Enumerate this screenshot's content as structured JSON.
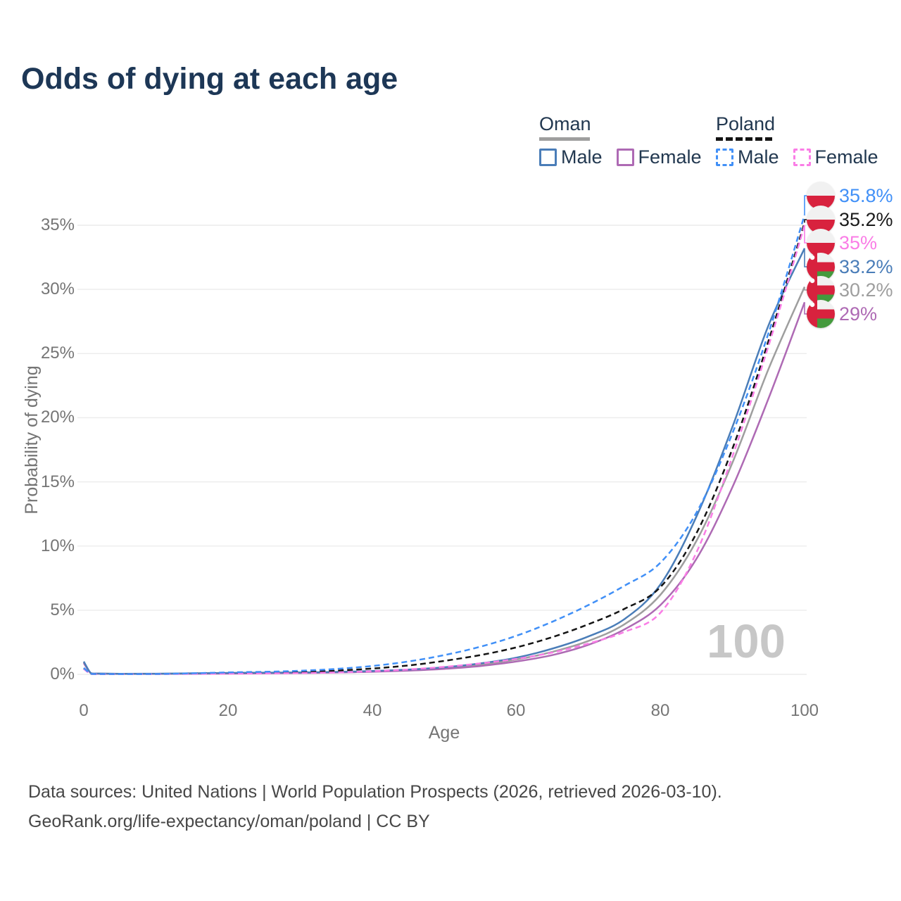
{
  "title": "Odds of dying at each age",
  "legend": {
    "groups": [
      {
        "name": "Oman",
        "line_style": "solid",
        "underline_color": "#9e9e9e",
        "items": [
          {
            "label": "Male",
            "color": "#4a7db8"
          },
          {
            "label": "Female",
            "color": "#ae6ab4"
          }
        ]
      },
      {
        "name": "Poland",
        "line_style": "dashed",
        "underline_color": "#141414",
        "items": [
          {
            "label": "Male",
            "color": "#4190f7"
          },
          {
            "label": "Female",
            "color": "#fa7de6"
          }
        ]
      }
    ]
  },
  "chart_data": {
    "type": "line",
    "title": "Odds of dying at each age",
    "xlabel": "Age",
    "ylabel": "Probability of dying",
    "xlim": [
      0,
      100
    ],
    "ylim": [
      0,
      37
    ],
    "grid": "horizontal",
    "x_tick_labels": [
      "0",
      "20",
      "40",
      "60",
      "80",
      "100"
    ],
    "y_tick_labels": [
      "0%",
      "5%",
      "10%",
      "15%",
      "20%",
      "25%",
      "30%",
      "35%"
    ],
    "y_grid_values": [
      0,
      5,
      10,
      15,
      20,
      25,
      30,
      35
    ],
    "watermark": "100",
    "x": [
      0,
      1,
      2,
      5,
      10,
      15,
      20,
      25,
      30,
      35,
      40,
      45,
      50,
      55,
      60,
      65,
      70,
      75,
      80,
      85,
      90,
      95,
      100
    ],
    "series": [
      {
        "name": "Oman Total",
        "country": "Oman",
        "sex": "Both",
        "color": "#9e9e9e",
        "dash": false,
        "label_row": 4,
        "end_label": "30.2%",
        "values": [
          0.94,
          0.085,
          0.055,
          0.04,
          0.045,
          0.065,
          0.09,
          0.11,
          0.13,
          0.17,
          0.23,
          0.33,
          0.49,
          0.75,
          1.15,
          1.75,
          2.6,
          3.9,
          6.2,
          10.4,
          16.5,
          23.8,
          30.2
        ]
      },
      {
        "name": "Oman Female",
        "country": "Oman",
        "sex": "Female",
        "color": "#ae6ab4",
        "dash": false,
        "label_row": 5,
        "end_label": "29%",
        "values": [
          0.88,
          0.08,
          0.05,
          0.035,
          0.04,
          0.05,
          0.06,
          0.08,
          0.1,
          0.14,
          0.2,
          0.29,
          0.43,
          0.65,
          1.0,
          1.5,
          2.3,
          3.5,
          5.4,
          9.0,
          14.6,
          21.5,
          29.0
        ]
      },
      {
        "name": "Oman Male",
        "country": "Oman",
        "sex": "Male",
        "color": "#4a7db8",
        "dash": false,
        "label_row": 3,
        "end_label": "33.2%",
        "values": [
          1.0,
          0.09,
          0.06,
          0.045,
          0.05,
          0.08,
          0.11,
          0.13,
          0.15,
          0.19,
          0.26,
          0.37,
          0.55,
          0.85,
          1.3,
          2.0,
          2.95,
          4.3,
          7.0,
          12.3,
          19.3,
          27.2,
          33.2
        ]
      },
      {
        "name": "Poland Total",
        "country": "Poland",
        "sex": "Both",
        "color": "#141414",
        "dash": true,
        "label_row": 1,
        "end_label": "35.2%",
        "values": [
          0.46,
          0.035,
          0.025,
          0.018,
          0.025,
          0.06,
          0.1,
          0.14,
          0.19,
          0.29,
          0.45,
          0.69,
          1.05,
          1.5,
          2.1,
          2.9,
          3.9,
          5.1,
          6.8,
          11.0,
          17.6,
          26.0,
          35.2
        ]
      },
      {
        "name": "Poland Female",
        "country": "Poland",
        "sex": "Female",
        "color": "#fa7de6",
        "dash": true,
        "label_row": 2,
        "end_label": "35%",
        "values": [
          0.42,
          0.03,
          0.02,
          0.015,
          0.02,
          0.035,
          0.05,
          0.07,
          0.1,
          0.15,
          0.24,
          0.38,
          0.58,
          0.85,
          1.2,
          1.7,
          2.4,
          3.3,
          4.8,
          9.5,
          17.0,
          25.6,
          35.0
        ]
      },
      {
        "name": "Poland Male",
        "country": "Poland",
        "sex": "Male",
        "color": "#4190f7",
        "dash": true,
        "label_row": 0,
        "end_label": "35.8%",
        "values": [
          0.5,
          0.04,
          0.03,
          0.02,
          0.03,
          0.08,
          0.15,
          0.2,
          0.28,
          0.42,
          0.65,
          1.0,
          1.5,
          2.15,
          3.0,
          4.1,
          5.4,
          6.9,
          8.7,
          12.6,
          18.8,
          26.6,
          35.8
        ]
      }
    ],
    "end_labels": [
      {
        "text": "35.8%",
        "color": "#4190f7",
        "flag": "poland"
      },
      {
        "text": "35.2%",
        "color": "#1a1a1a",
        "flag": "poland"
      },
      {
        "text": "35%",
        "color": "#fa7de6",
        "flag": "poland"
      },
      {
        "text": "33.2%",
        "color": "#4a7db8",
        "flag": "oman"
      },
      {
        "text": "30.2%",
        "color": "#9e9e9e",
        "flag": "oman"
      },
      {
        "text": "29%",
        "color": "#ae6ab4",
        "flag": "oman"
      }
    ]
  },
  "footer": {
    "line1": "Data sources: United Nations | World Population Prospects (2026, retrieved 2026-03-10).",
    "line2": "GeoRank.org/life-expectancy/oman/poland | CC BY"
  }
}
